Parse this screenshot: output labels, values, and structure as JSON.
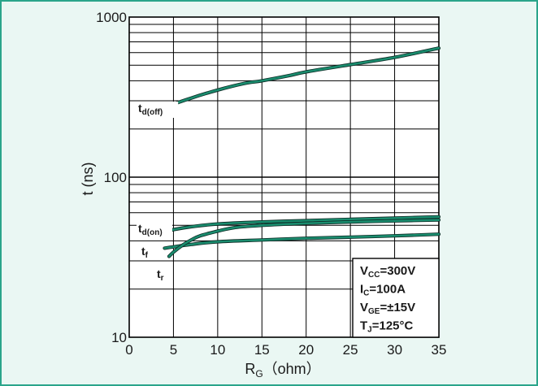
{
  "chart_data": {
    "type": "line",
    "xlabel": {
      "main": "R",
      "sub": "G",
      "unit": "（ohm）"
    },
    "ylabel": "t  (ns)",
    "xlim": [
      0,
      35
    ],
    "ylim": [
      10,
      1000
    ],
    "yscale": "log",
    "grid": true,
    "x_ticks": [
      "0",
      "5",
      "10",
      "15",
      "20",
      "25",
      "30",
      "35"
    ],
    "y_ticks": [
      "10",
      "100",
      "1000"
    ],
    "series_color": "#1a8c6e",
    "series": [
      {
        "label_main": "t",
        "label_sub": "d(off)",
        "x": [
          4.5,
          5,
          7,
          10,
          13,
          15,
          18,
          20,
          25,
          30,
          35
        ],
        "y": [
          270,
          285,
          312,
          350,
          385,
          400,
          430,
          455,
          505,
          560,
          640
        ]
      },
      {
        "label_main": "t",
        "label_sub": "d(on)",
        "x": [
          4.5,
          5,
          7,
          10,
          15,
          20,
          25,
          30,
          35
        ],
        "y": [
          46,
          47,
          49,
          51,
          52.5,
          53.5,
          54.5,
          55.5,
          56.5
        ]
      },
      {
        "label_main": "t",
        "label_sub": "f",
        "x": [
          4,
          5,
          7,
          10,
          15,
          20,
          25,
          30,
          35
        ],
        "y": [
          36,
          36.7,
          38,
          39.5,
          40.5,
          41.5,
          42.2,
          43,
          44
        ]
      },
      {
        "label_main": "t",
        "label_sub": "r",
        "x": [
          4.5,
          5,
          6,
          7,
          8,
          10,
          12,
          15,
          20,
          25,
          30,
          35
        ],
        "y": [
          32,
          34,
          37.5,
          40.5,
          43,
          46,
          48.5,
          50,
          51.5,
          52.5,
          53.3,
          54
        ]
      }
    ],
    "conditions": [
      {
        "main": "V",
        "sub": "CC",
        "rest": "=300V"
      },
      {
        "main": "I",
        "sub": "C",
        "rest": "=100A"
      },
      {
        "main": "V",
        "sub": "GE",
        "rest": "=±15V"
      },
      {
        "main": "T",
        "sub": "J",
        "rest": "=125°C"
      }
    ]
  }
}
